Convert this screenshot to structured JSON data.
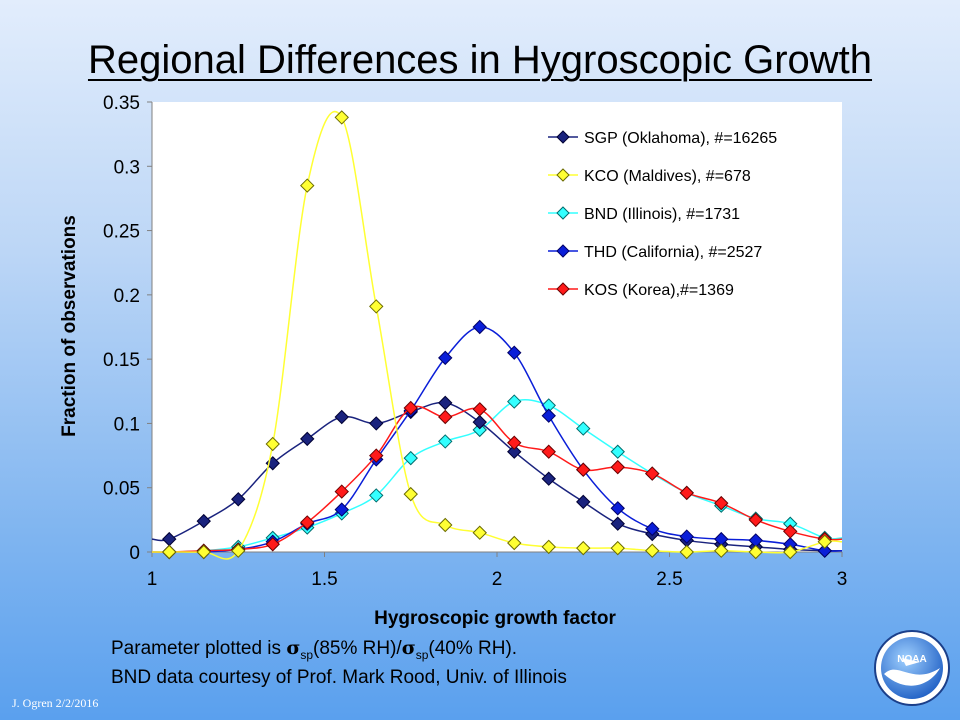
{
  "slide": {
    "title": "Regional Differences in Hygroscopic Growth",
    "caption_line1_pre": "Parameter plotted is ",
    "sigma": "σ",
    "sub": "sp",
    "caption_line1_mid": "(85% RH)/",
    "caption_line1_end": "(40% RH).",
    "caption_line2": "BND data courtesy of Prof. Mark Rood, Univ. of Illinois",
    "footer": "J. Ogren  2/2/2016",
    "logo_text": "NOAA"
  },
  "chart_data": {
    "type": "line",
    "title": "",
    "xlabel": "Hygroscopic growth factor",
    "ylabel": "Fraction of observations",
    "xlim": [
      1,
      3
    ],
    "ylim": [
      0,
      0.35
    ],
    "xticks": [
      "1",
      "1.5",
      "2",
      "2.5",
      "3"
    ],
    "yticks": [
      "0",
      "0.05",
      "0.1",
      "0.15",
      "0.2",
      "0.25",
      "0.3",
      "0.35"
    ],
    "x": [
      1.05,
      1.15,
      1.25,
      1.35,
      1.45,
      1.55,
      1.65,
      1.75,
      1.85,
      1.95,
      2.05,
      2.15,
      2.25,
      2.35,
      2.45,
      2.55,
      2.65,
      2.75,
      2.85,
      2.95
    ],
    "legend_position": "top-right",
    "grid": false,
    "series": [
      {
        "name": "SGP (Oklahoma), #=16265",
        "color": "#1a237e",
        "edge": "#000033",
        "values": [
          0.01,
          0.024,
          0.041,
          0.069,
          0.088,
          0.105,
          0.1,
          0.109,
          0.116,
          0.101,
          0.078,
          0.057,
          0.039,
          0.022,
          0.014,
          0.009,
          0.006,
          0.004,
          0.002,
          0.001
        ]
      },
      {
        "name": "KCO (Maldives), #=678",
        "color": "#ffff33",
        "edge": "#6b6b00",
        "values": [
          0.0,
          0.0,
          0.001,
          0.084,
          0.285,
          0.338,
          0.191,
          0.045,
          0.021,
          0.015,
          0.007,
          0.004,
          0.003,
          0.003,
          0.001,
          0.0,
          0.001,
          0.0,
          0.0,
          0.008
        ]
      },
      {
        "name": "BND (Illinois), #=1731",
        "color": "#33ffff",
        "edge": "#006b6b",
        "values": [
          0.0,
          0.001,
          0.004,
          0.011,
          0.019,
          0.03,
          0.044,
          0.073,
          0.086,
          0.095,
          0.117,
          0.114,
          0.096,
          0.078,
          0.061,
          0.046,
          0.036,
          0.026,
          0.022,
          0.011
        ]
      },
      {
        "name": "THD (California), #=2527",
        "color": "#0a1ed8",
        "edge": "#000066",
        "values": [
          0.0,
          0.0,
          0.002,
          0.008,
          0.022,
          0.033,
          0.072,
          0.11,
          0.151,
          0.175,
          0.155,
          0.106,
          0.064,
          0.034,
          0.018,
          0.012,
          0.01,
          0.009,
          0.006,
          0.001
        ]
      },
      {
        "name": "KOS (Korea),#=1369",
        "color": "#ff1a1a",
        "edge": "#6b0000",
        "values": [
          0.0,
          0.001,
          0.002,
          0.006,
          0.023,
          0.047,
          0.075,
          0.112,
          0.105,
          0.111,
          0.085,
          0.078,
          0.064,
          0.066,
          0.061,
          0.046,
          0.038,
          0.025,
          0.016,
          0.01
        ]
      }
    ]
  }
}
